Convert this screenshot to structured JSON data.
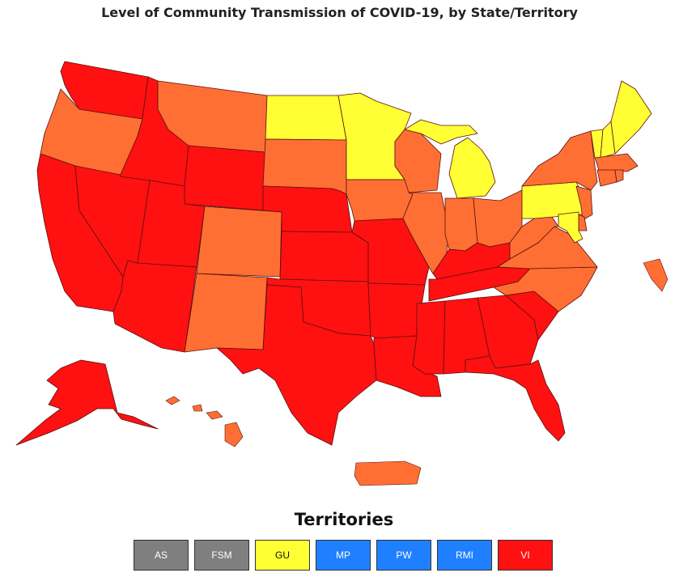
{
  "title": "Level of Community Transmission of COVID-19, by State/Territory",
  "colors": {
    "red": "#ff1111",
    "orange": "#ff6f33",
    "yellow": "#ffff33",
    "gray": "#7f7f7f",
    "blue": "#1f80ff",
    "border": "#5a1010"
  },
  "territories": {
    "heading": "Territories",
    "items": [
      {
        "label": "AS",
        "level": "gray"
      },
      {
        "label": "FSM",
        "level": "gray"
      },
      {
        "label": "GU",
        "level": "yellow"
      },
      {
        "label": "MP",
        "level": "blue"
      },
      {
        "label": "PW",
        "level": "blue"
      },
      {
        "label": "RMI",
        "level": "blue"
      },
      {
        "label": "VI",
        "level": "red"
      }
    ]
  },
  "states": {
    "WA": "red",
    "OR": "orange",
    "CA": "red",
    "NV": "red",
    "ID": "red",
    "MT": "orange",
    "WY": "red",
    "UT": "red",
    "AZ": "red",
    "CO": "orange",
    "NM": "orange",
    "ND": "yellow",
    "SD": "orange",
    "NE": "red",
    "KS": "red",
    "OK": "red",
    "TX": "red",
    "MN": "yellow",
    "IA": "orange",
    "MO": "red",
    "AR": "red",
    "LA": "red",
    "WI": "orange",
    "IL": "orange",
    "MI": "yellow",
    "IN": "orange",
    "OH": "orange",
    "KY": "red",
    "TN": "red",
    "MS": "red",
    "AL": "red",
    "GA": "red",
    "FL": "red",
    "SC": "red",
    "NC": "orange",
    "VA": "orange",
    "WV": "orange",
    "PA": "yellow",
    "NY": "orange",
    "VT": "yellow",
    "NH": "yellow",
    "ME": "yellow",
    "MA": "orange",
    "CT": "orange",
    "RI": "orange",
    "NJ": "orange",
    "DE": "orange",
    "MD": "yellow",
    "AK": "red",
    "HI": "orange",
    "PR": "orange"
  }
}
